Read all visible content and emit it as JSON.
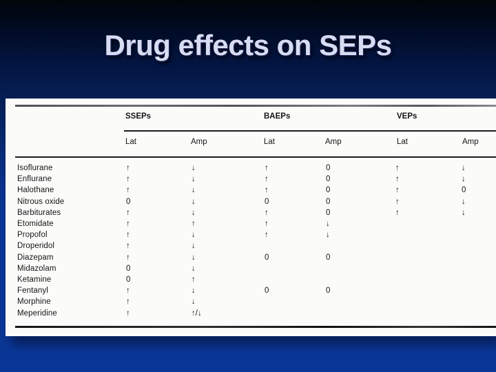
{
  "slide": {
    "title": "Drug effects on SEPs",
    "title_color": "#d8dcf2",
    "background_top_color": "#010c24",
    "background_bottom_color": "#0a3797"
  },
  "table": {
    "group_headers": [
      "SSEPs",
      "BAEPs",
      "VEPs"
    ],
    "sub_headers": [
      "Lat",
      "Amp",
      "Lat",
      "Amp",
      "Lat",
      "Amp"
    ],
    "rows": [
      {
        "name": "Isoflurane",
        "cells": [
          "↑",
          "↓",
          "↑",
          "0",
          "↑",
          "↓"
        ]
      },
      {
        "name": "Enflurane",
        "cells": [
          "↑",
          "↓",
          "↑",
          "0",
          "↑",
          "↓"
        ]
      },
      {
        "name": "Halothane",
        "cells": [
          "↑",
          "↓",
          "↑",
          "0",
          "↑",
          "0"
        ]
      },
      {
        "name": "Nitrous oxide",
        "cells": [
          "0",
          "↓",
          "0",
          "0",
          "↑",
          "↓"
        ]
      },
      {
        "name": "Barbiturates",
        "cells": [
          "↑",
          "↓",
          "↑",
          "0",
          "↑",
          "↓"
        ]
      },
      {
        "name": "Etomidate",
        "cells": [
          "↑",
          "↑",
          "↑",
          "↓",
          "",
          ""
        ]
      },
      {
        "name": "Propofol",
        "cells": [
          "↑",
          "↓",
          "↑",
          "↓",
          "",
          ""
        ]
      },
      {
        "name": "Droperidol",
        "cells": [
          "↑",
          "↓",
          "",
          "",
          "",
          ""
        ]
      },
      {
        "name": "Diazepam",
        "cells": [
          "↑",
          "↓",
          "0",
          "0",
          "",
          ""
        ]
      },
      {
        "name": "Midazolam",
        "cells": [
          "0",
          "↓",
          "",
          "",
          "",
          ""
        ]
      },
      {
        "name": "Ketamine",
        "cells": [
          "0",
          "↑",
          "",
          "",
          "",
          ""
        ]
      },
      {
        "name": "Fentanyl",
        "cells": [
          "↑",
          "↓",
          "0",
          "0",
          "",
          ""
        ]
      },
      {
        "name": "Morphine",
        "cells": [
          "↑",
          "↓",
          "",
          "",
          "",
          ""
        ]
      },
      {
        "name": "Meperidine",
        "cells": [
          "↑",
          "↑/↓",
          "",
          "",
          "",
          ""
        ]
      }
    ]
  }
}
